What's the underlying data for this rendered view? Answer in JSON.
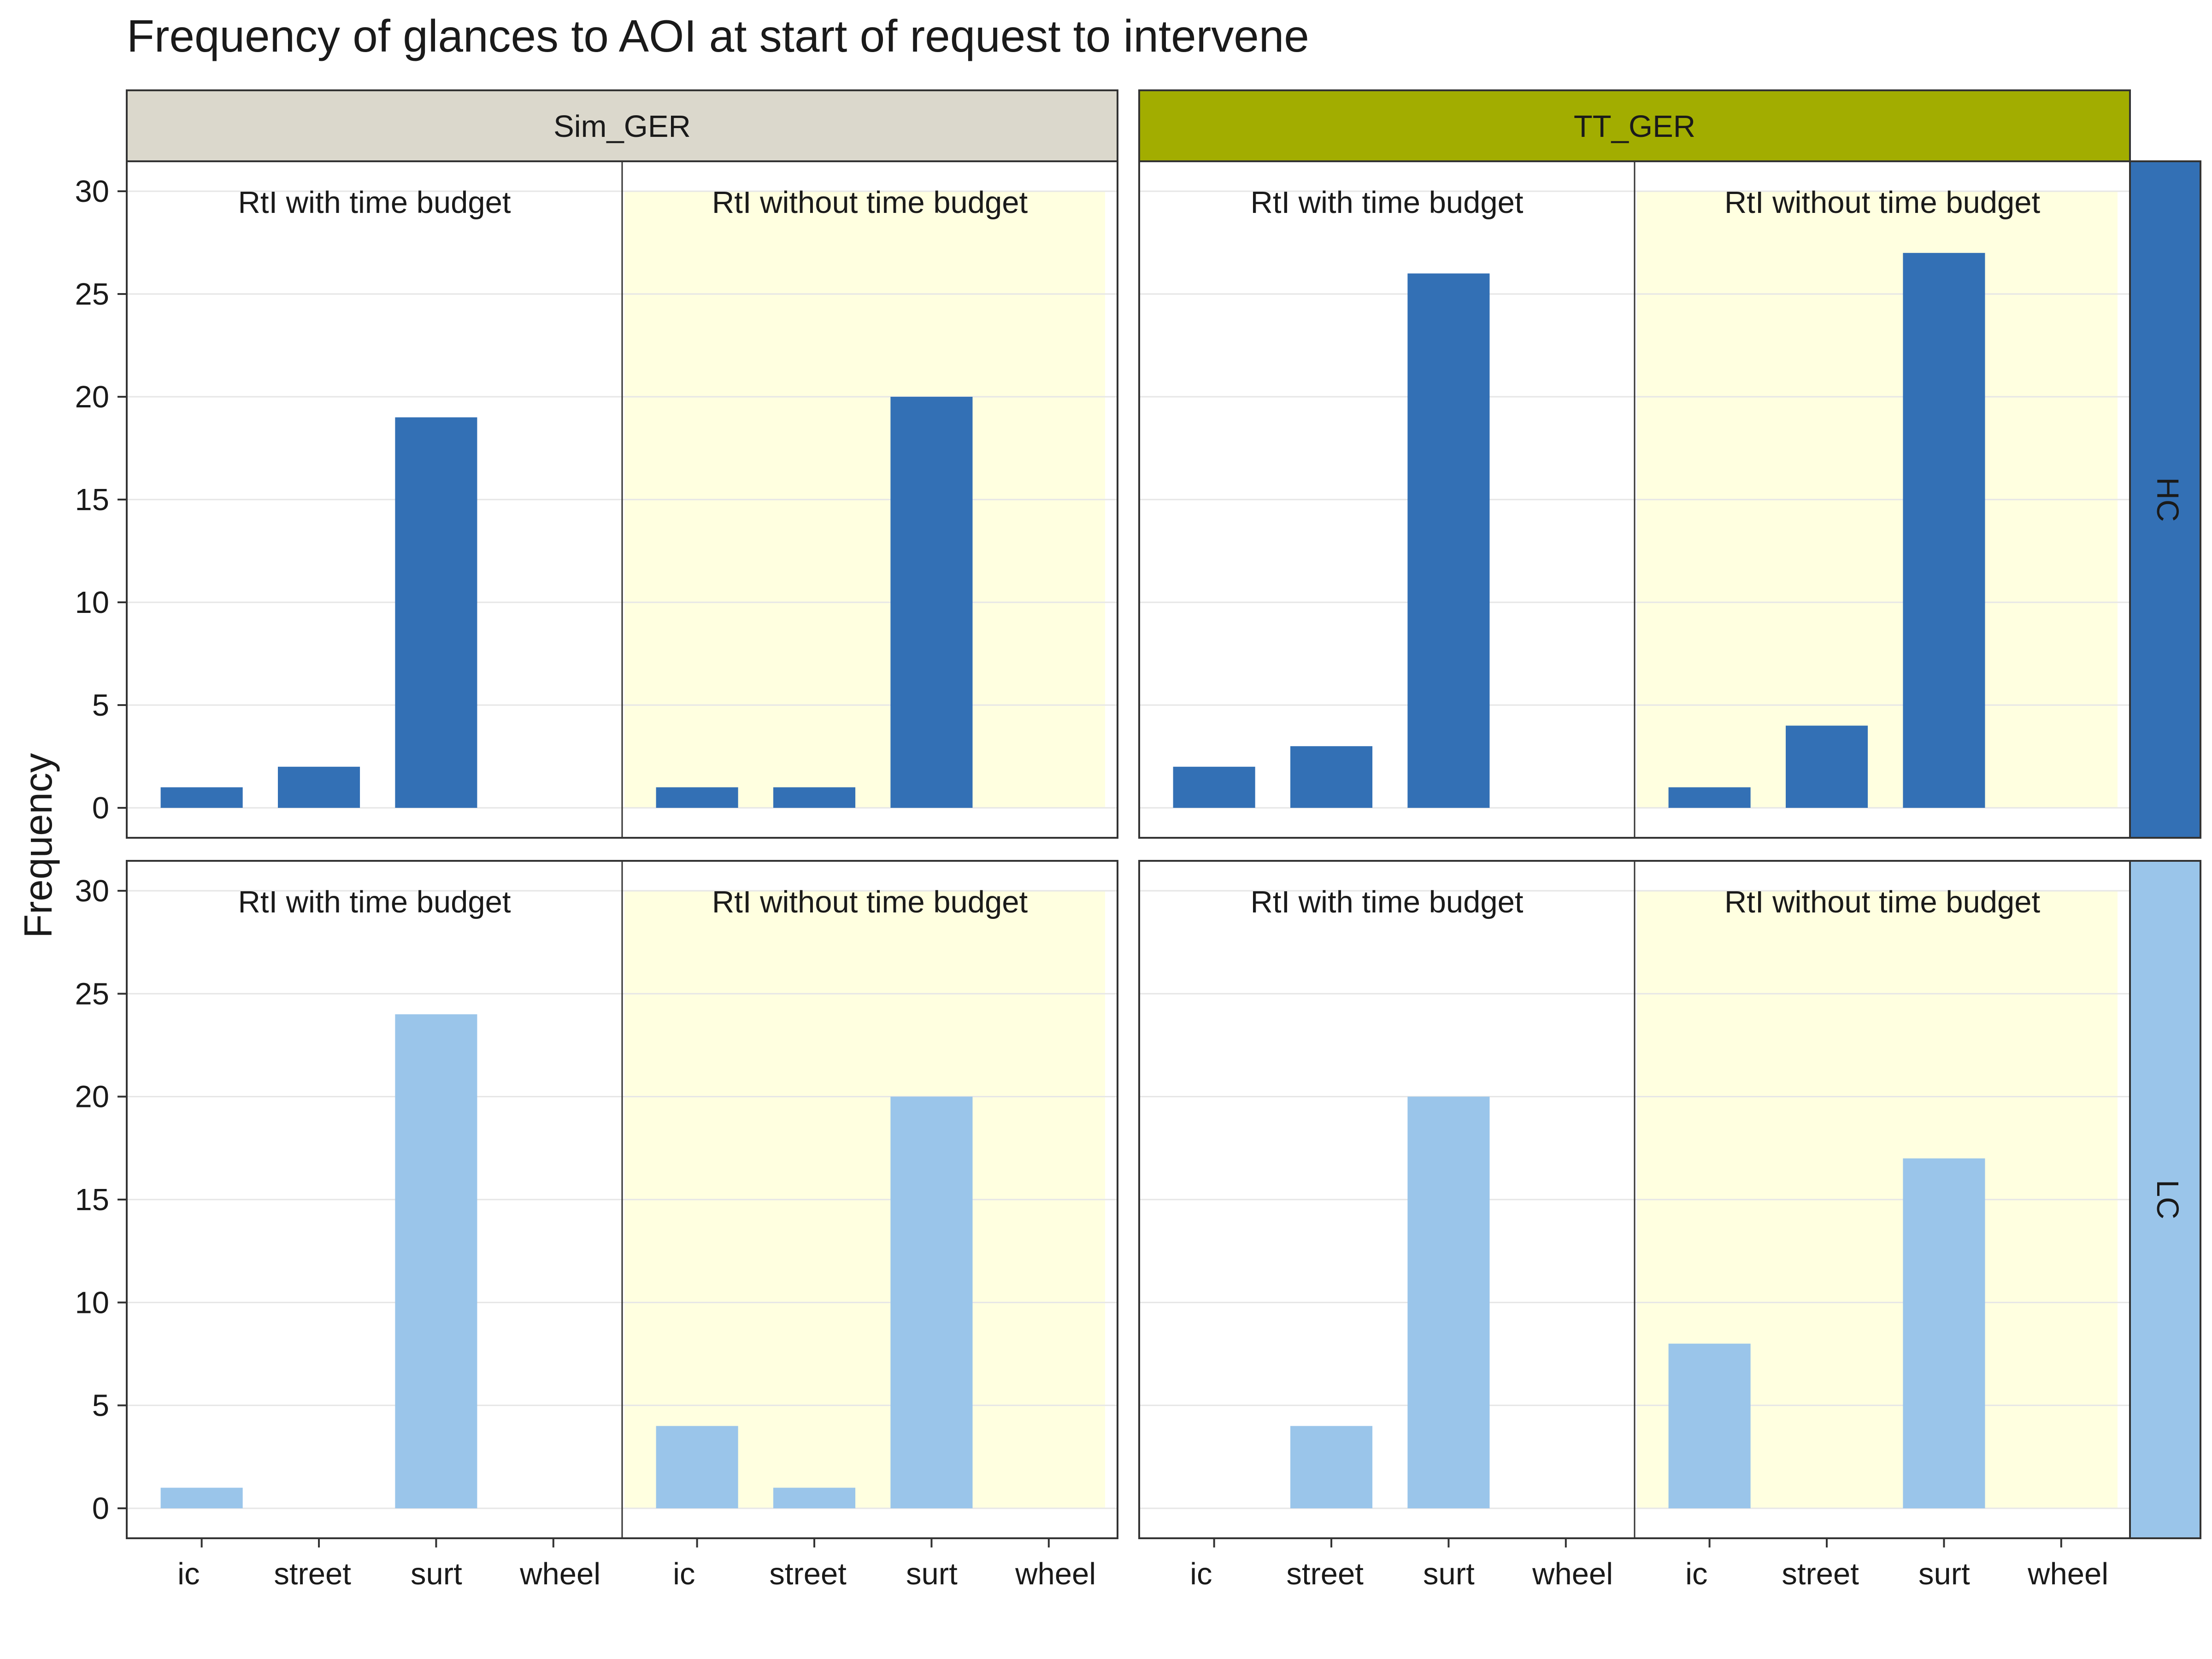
{
  "chart_data": {
    "type": "bar",
    "title": "Frequency of glances to AOI at start of request to intervene",
    "xlabel": "",
    "ylabel": "Frequency",
    "ylim": [
      0,
      31
    ],
    "yticks": [
      0,
      5,
      10,
      15,
      20,
      25,
      30
    ],
    "grid": true,
    "legend": "none",
    "categories": [
      "ic",
      "street",
      "surt",
      "wheel"
    ],
    "columns": [
      {
        "label": "Sim_GER",
        "color": "#dbd8cc"
      },
      {
        "label": "TT_GER",
        "color": "#a2ad00"
      }
    ],
    "rows": [
      {
        "label": "HC",
        "color": "#3370b5"
      },
      {
        "label": "LC",
        "color": "#9ac5ea"
      }
    ],
    "conditions": [
      {
        "label": "RtI with time budget",
        "background": "#ffffff"
      },
      {
        "label": "RtI without time budget",
        "background": "#ffffe0"
      }
    ],
    "panels": [
      {
        "row": "HC",
        "column": "Sim_GER",
        "condition": "RtI with time budget",
        "values": [
          1,
          2,
          19,
          0
        ]
      },
      {
        "row": "HC",
        "column": "Sim_GER",
        "condition": "RtI without time budget",
        "values": [
          1,
          1,
          20,
          0
        ]
      },
      {
        "row": "HC",
        "column": "TT_GER",
        "condition": "RtI with time budget",
        "values": [
          2,
          3,
          26,
          0
        ]
      },
      {
        "row": "HC",
        "column": "TT_GER",
        "condition": "RtI without time budget",
        "values": [
          1,
          4,
          27,
          0
        ]
      },
      {
        "row": "LC",
        "column": "Sim_GER",
        "condition": "RtI with time budget",
        "values": [
          1,
          0,
          24,
          0
        ]
      },
      {
        "row": "LC",
        "column": "Sim_GER",
        "condition": "RtI without time budget",
        "values": [
          4,
          1,
          20,
          0
        ]
      },
      {
        "row": "LC",
        "column": "TT_GER",
        "condition": "RtI with time budget",
        "values": [
          0,
          4,
          20,
          0
        ]
      },
      {
        "row": "LC",
        "column": "TT_GER",
        "condition": "RtI without time budget",
        "values": [
          8,
          0,
          17,
          0
        ]
      }
    ]
  }
}
